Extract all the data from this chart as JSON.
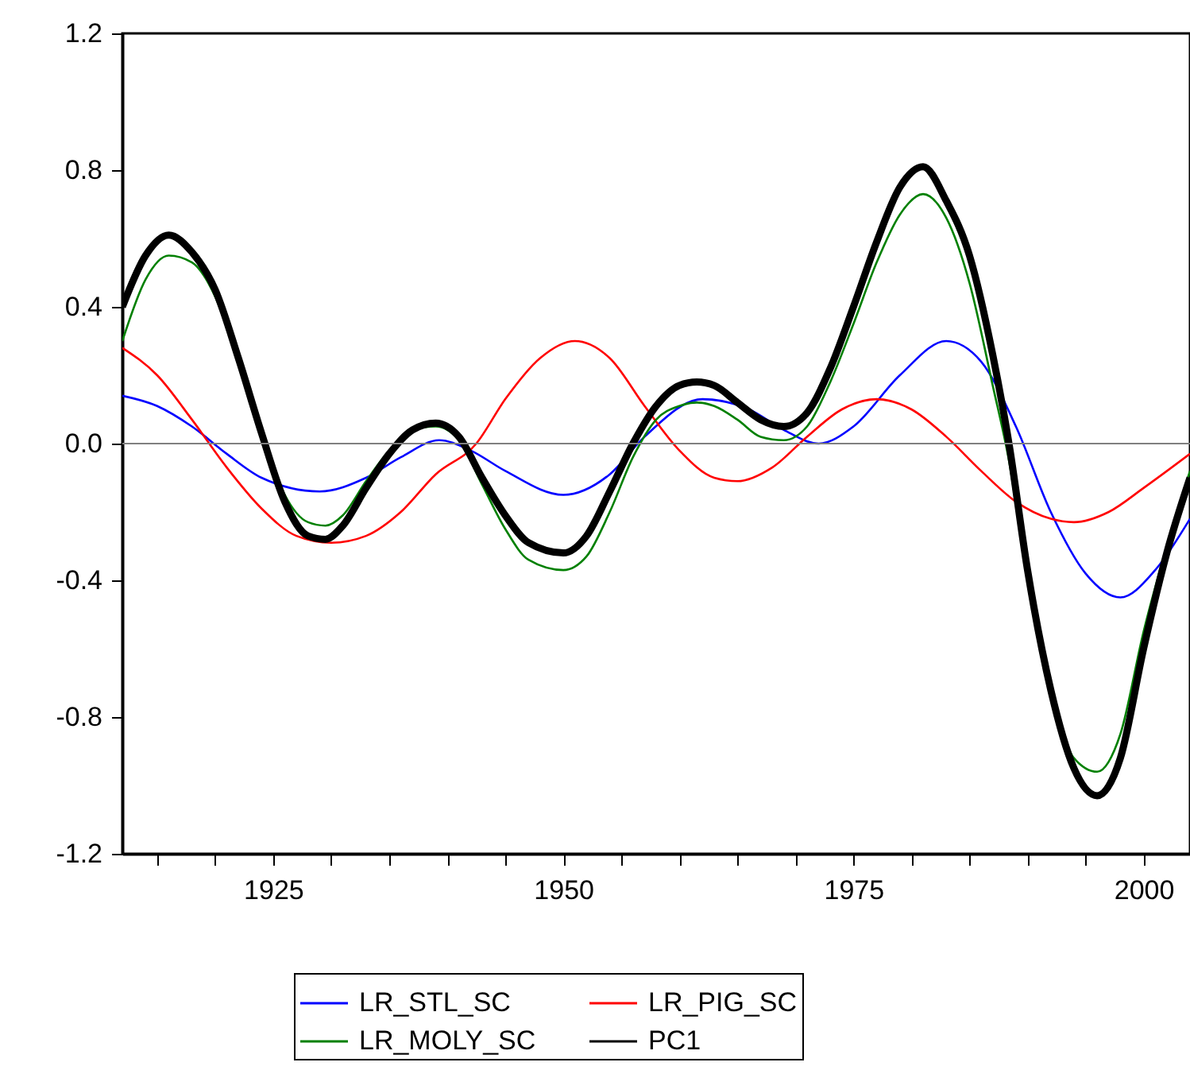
{
  "chart_data": {
    "type": "line",
    "xlim": [
      1912,
      2004
    ],
    "ylim": [
      -1.2,
      1.2
    ],
    "xticks": [
      {
        "value": 1915,
        "label": null
      },
      {
        "value": 1920,
        "label": null
      },
      1925,
      {
        "value": 1930,
        "label": null
      },
      {
        "value": 1935,
        "label": null
      },
      {
        "value": 1940,
        "label": null
      },
      {
        "value": 1945,
        "label": null
      },
      1950,
      {
        "value": 1955,
        "label": null
      },
      {
        "value": 1960,
        "label": null
      },
      {
        "value": 1965,
        "label": null
      },
      {
        "value": 1970,
        "label": null
      },
      1975,
      {
        "value": 1980,
        "label": null
      },
      {
        "value": 1985,
        "label": null
      },
      {
        "value": 1990,
        "label": null
      },
      {
        "value": 1995,
        "label": null
      },
      2000
    ],
    "yticks": [
      -1.2,
      -0.8,
      -0.4,
      {
        "value": 0,
        "label": "0.0"
      },
      0.4,
      0.8,
      1.2
    ],
    "grid": false,
    "legend": "bottom",
    "marker": "none",
    "line_style": "solid",
    "ref_lines": [
      {
        "axis": "y",
        "value": 0,
        "color": "#808080"
      }
    ],
    "series": [
      {
        "name": "LR_STL_SC",
        "color": "#0000ff",
        "x": [
          1912,
          1915,
          1918,
          1921,
          1924,
          1929,
          1933,
          1936,
          1939.3,
          1942,
          1945,
          1950,
          1954,
          1957,
          1962,
          1966,
          1969,
          1972,
          1975,
          1979,
          1983,
          1986,
          1989,
          1992,
          1995,
          1998,
          2001,
          2004
        ],
        "values": [
          0.14,
          0.11,
          0.05,
          -0.03,
          -0.1,
          -0.14,
          -0.1,
          -0.04,
          0.01,
          -0.02,
          -0.08,
          -0.15,
          -0.09,
          0.02,
          0.13,
          0.1,
          0.04,
          0.0,
          0.05,
          0.2,
          0.3,
          0.24,
          0.05,
          -0.2,
          -0.38,
          -0.45,
          -0.37,
          -0.22
        ]
      },
      {
        "name": "LR_PIG_SC",
        "color": "#ff0000",
        "x": [
          1912,
          1915,
          1918,
          1921,
          1924,
          1927,
          1930,
          1933,
          1936,
          1939,
          1942.5,
          1945,
          1948,
          1951,
          1954,
          1957,
          1960,
          1963,
          1965,
          1968,
          1971,
          1974,
          1977,
          1980,
          1983,
          1986,
          1989,
          1992,
          1994,
          1997,
          2000,
          2004
        ],
        "values": [
          0.28,
          0.2,
          0.07,
          -0.07,
          -0.19,
          -0.27,
          -0.29,
          -0.27,
          -0.2,
          -0.09,
          0.0,
          0.13,
          0.25,
          0.3,
          0.25,
          0.11,
          -0.02,
          -0.1,
          -0.11,
          -0.07,
          0.02,
          0.1,
          0.13,
          0.1,
          0.02,
          -0.08,
          -0.17,
          -0.22,
          -0.23,
          -0.2,
          -0.13,
          -0.03
        ]
      },
      {
        "name": "LR_MOLY_SC",
        "color": "#008000",
        "x": [
          1912,
          1914,
          1916,
          1918,
          1920,
          1922,
          1924,
          1926,
          1928,
          1929.5,
          1931,
          1933,
          1935,
          1937,
          1939,
          1941,
          1943,
          1945,
          1947,
          1950,
          1952,
          1954,
          1956,
          1958,
          1960,
          1961.5,
          1963,
          1965,
          1967,
          1969,
          1971,
          1973,
          1975,
          1977,
          1979,
          1981,
          1983,
          1985,
          1987,
          1988.4,
          1990,
          1992,
          1994,
          1996,
          1998,
          2000,
          2002,
          2004
        ],
        "values": [
          0.3,
          0.48,
          0.55,
          0.53,
          0.43,
          0.24,
          0.03,
          -0.15,
          -0.23,
          -0.24,
          -0.21,
          -0.11,
          -0.02,
          0.04,
          0.05,
          0.01,
          -0.12,
          -0.25,
          -0.34,
          -0.37,
          -0.33,
          -0.2,
          -0.04,
          0.07,
          0.11,
          0.12,
          0.11,
          0.07,
          0.02,
          0.01,
          0.05,
          0.18,
          0.35,
          0.53,
          0.67,
          0.73,
          0.66,
          0.47,
          0.17,
          -0.05,
          -0.4,
          -0.72,
          -0.92,
          -0.96,
          -0.85,
          -0.55,
          -0.3,
          -0.08
        ]
      },
      {
        "name": "PC1",
        "color": "#000000",
        "x": [
          1912,
          1914,
          1916,
          1918,
          1920,
          1922,
          1924,
          1926,
          1928,
          1929.5,
          1931,
          1933,
          1935,
          1937,
          1939,
          1941,
          1943,
          1945,
          1947,
          1950,
          1952,
          1954,
          1956,
          1958,
          1960,
          1961.5,
          1963,
          1965,
          1967,
          1969,
          1971,
          1973,
          1975,
          1977,
          1979,
          1981,
          1983,
          1985,
          1987,
          1988.4,
          1990,
          1992,
          1994,
          1996,
          1998,
          2000,
          2002,
          2004
        ],
        "values": [
          0.4,
          0.55,
          0.61,
          0.56,
          0.45,
          0.25,
          0.03,
          -0.17,
          -0.27,
          -0.28,
          -0.24,
          -0.13,
          -0.03,
          0.04,
          0.06,
          0.02,
          -0.1,
          -0.21,
          -0.29,
          -0.32,
          -0.27,
          -0.14,
          0.0,
          0.11,
          0.17,
          0.18,
          0.17,
          0.12,
          0.07,
          0.05,
          0.09,
          0.22,
          0.4,
          0.59,
          0.75,
          0.81,
          0.71,
          0.55,
          0.26,
          0.0,
          -0.37,
          -0.72,
          -0.95,
          -1.03,
          -0.92,
          -0.6,
          -0.32,
          -0.1
        ]
      }
    ]
  }
}
